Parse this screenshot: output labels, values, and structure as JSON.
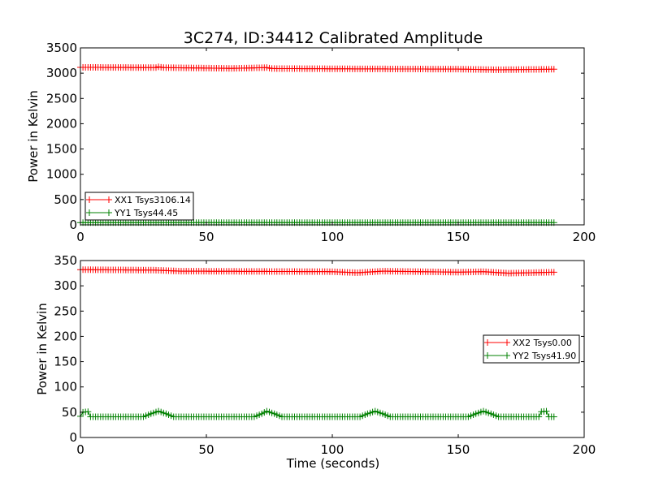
{
  "title": "3C274, ID:34412 Calibrated Amplitude",
  "colors": {
    "xx": "#ff0000",
    "yy": "#008000"
  },
  "chart_data": [
    {
      "type": "line",
      "title": "3C274, ID:34412 Calibrated Amplitude",
      "xlabel": "",
      "ylabel": "Power in Kelvin",
      "xlim": [
        0,
        200
      ],
      "ylim": [
        0,
        3500
      ],
      "xticks": [
        "0",
        "50",
        "100",
        "150",
        "200"
      ],
      "yticks": [
        "0",
        "500",
        "1000",
        "1500",
        "2000",
        "2500",
        "3000",
        "3500"
      ],
      "grid": false,
      "legend_position": "lower-left",
      "series": [
        {
          "name": "XX1 Tsys3106.14",
          "color": "#ff0000",
          "marker": "+",
          "x_start": 0,
          "x_end": 188,
          "x_step": 1,
          "keyframes": [
            [
              0,
              3115
            ],
            [
              30,
              3110
            ],
            [
              31,
              3125
            ],
            [
              33,
              3110
            ],
            [
              60,
              3095
            ],
            [
              74,
              3110
            ],
            [
              76,
              3092
            ],
            [
              110,
              3085
            ],
            [
              150,
              3080
            ],
            [
              165,
              3068
            ],
            [
              188,
              3078
            ]
          ]
        },
        {
          "name": "YY1 Tsys44.45",
          "color": "#008000",
          "marker": "+",
          "x_start": 0,
          "x_end": 188,
          "x_step": 1,
          "keyframes": [
            [
              0,
              45
            ],
            [
              188,
              45
            ]
          ]
        }
      ]
    },
    {
      "type": "line",
      "title": "",
      "xlabel": "Time (seconds)",
      "ylabel": "Power in Kelvin",
      "xlim": [
        0,
        200
      ],
      "ylim": [
        0,
        350
      ],
      "xticks": [
        "0",
        "50",
        "100",
        "150",
        "200"
      ],
      "yticks": [
        "0",
        "50",
        "100",
        "150",
        "200",
        "250",
        "300",
        "350"
      ],
      "grid": false,
      "legend_position": "center-right",
      "series": [
        {
          "name": "XX2 Tsys0.00",
          "color": "#ff0000",
          "marker": "+",
          "x_start": 0,
          "x_end": 188,
          "x_step": 1,
          "keyframes": [
            [
              0,
              332
            ],
            [
              30,
              331
            ],
            [
              40,
              329
            ],
            [
              100,
              328
            ],
            [
              110,
              326
            ],
            [
              120,
              329
            ],
            [
              150,
              327
            ],
            [
              160,
              328
            ],
            [
              170,
              325
            ],
            [
              188,
              327
            ]
          ]
        },
        {
          "name": "YY2 Tsys41.90",
          "color": "#008000",
          "marker": "+",
          "x_start": 0,
          "x_end": 188,
          "x_step": 1,
          "keyframes": [
            [
              0,
              42
            ],
            [
              1,
              50
            ],
            [
              3,
              51
            ],
            [
              4,
              41
            ],
            [
              25,
              41
            ],
            [
              28,
              47
            ],
            [
              31,
              52
            ],
            [
              34,
              47
            ],
            [
              37,
              41
            ],
            [
              69,
              41
            ],
            [
              72,
              47
            ],
            [
              74,
              52
            ],
            [
              77,
              47
            ],
            [
              80,
              41
            ],
            [
              111,
              41
            ],
            [
              114,
              47
            ],
            [
              117,
              52
            ],
            [
              120,
              47
            ],
            [
              123,
              41
            ],
            [
              154,
              41
            ],
            [
              157,
              47
            ],
            [
              160,
              52
            ],
            [
              163,
              47
            ],
            [
              166,
              41
            ],
            [
              182,
              41
            ],
            [
              183,
              51
            ],
            [
              185,
              52
            ],
            [
              186,
              41
            ],
            [
              188,
              41
            ]
          ]
        }
      ]
    }
  ]
}
